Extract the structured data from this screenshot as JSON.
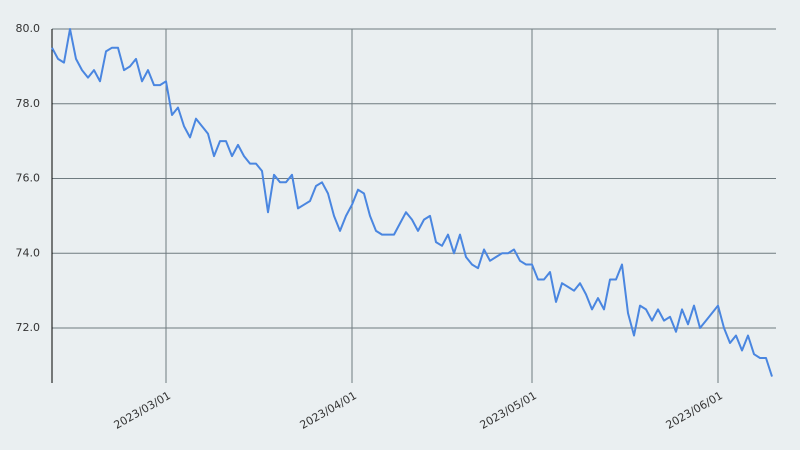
{
  "chart_data": {
    "type": "line",
    "x": [
      "2023-02-10",
      "2023-02-11",
      "2023-02-12",
      "2023-02-13",
      "2023-02-14",
      "2023-02-15",
      "2023-02-16",
      "2023-02-17",
      "2023-02-18",
      "2023-02-19",
      "2023-02-20",
      "2023-02-21",
      "2023-02-22",
      "2023-02-23",
      "2023-02-24",
      "2023-02-25",
      "2023-02-26",
      "2023-02-27",
      "2023-02-28",
      "2023-03-01",
      "2023-03-02",
      "2023-03-03",
      "2023-03-04",
      "2023-03-05",
      "2023-03-06",
      "2023-03-07",
      "2023-03-08",
      "2023-03-09",
      "2023-03-10",
      "2023-03-11",
      "2023-03-12",
      "2023-03-13",
      "2023-03-14",
      "2023-03-15",
      "2023-03-16",
      "2023-03-17",
      "2023-03-18",
      "2023-03-19",
      "2023-03-20",
      "2023-03-21",
      "2023-03-22",
      "2023-03-23",
      "2023-03-24",
      "2023-03-25",
      "2023-03-26",
      "2023-03-27",
      "2023-03-28",
      "2023-03-29",
      "2023-03-30",
      "2023-03-31",
      "2023-04-01",
      "2023-04-02",
      "2023-04-03",
      "2023-04-04",
      "2023-04-05",
      "2023-04-06",
      "2023-04-07",
      "2023-04-08",
      "2023-04-09",
      "2023-04-10",
      "2023-04-11",
      "2023-04-12",
      "2023-04-13",
      "2023-04-14",
      "2023-04-15",
      "2023-04-16",
      "2023-04-17",
      "2023-04-18",
      "2023-04-19",
      "2023-04-20",
      "2023-04-21",
      "2023-04-22",
      "2023-04-23",
      "2023-04-24",
      "2023-04-25",
      "2023-04-26",
      "2023-04-27",
      "2023-04-28",
      "2023-04-29",
      "2023-04-30",
      "2023-05-01",
      "2023-05-02",
      "2023-05-03",
      "2023-05-04",
      "2023-05-05",
      "2023-05-06",
      "2023-05-07",
      "2023-05-08",
      "2023-05-09",
      "2023-05-10",
      "2023-05-11",
      "2023-05-12",
      "2023-05-13",
      "2023-05-14",
      "2023-05-15",
      "2023-05-16",
      "2023-05-17",
      "2023-05-18",
      "2023-05-19",
      "2023-05-20",
      "2023-05-21",
      "2023-05-22",
      "2023-05-23",
      "2023-05-24",
      "2023-05-25",
      "2023-05-26",
      "2023-05-27",
      "2023-05-28",
      "2023-05-29",
      "2023-05-30",
      "2023-05-31",
      "2023-06-01",
      "2023-06-02",
      "2023-06-03",
      "2023-06-04",
      "2023-06-05",
      "2023-06-06",
      "2023-06-07",
      "2023-06-08",
      "2023-06-09",
      "2023-06-10"
    ],
    "values": [
      79.5,
      79.2,
      79.1,
      80.0,
      79.2,
      78.9,
      78.7,
      78.9,
      78.6,
      79.4,
      79.5,
      79.5,
      78.9,
      79.0,
      79.2,
      78.6,
      78.9,
      78.5,
      78.5,
      78.6,
      77.7,
      77.9,
      77.4,
      77.1,
      77.6,
      77.4,
      77.2,
      76.6,
      77.0,
      77.0,
      76.6,
      76.9,
      76.6,
      76.4,
      76.4,
      76.2,
      75.1,
      76.1,
      75.9,
      75.9,
      76.1,
      75.2,
      75.3,
      75.4,
      75.8,
      75.9,
      75.6,
      75.0,
      74.6,
      75.0,
      75.3,
      75.7,
      75.6,
      75.0,
      74.6,
      74.5,
      74.5,
      74.5,
      74.8,
      75.1,
      74.9,
      74.6,
      74.9,
      75.0,
      74.3,
      74.2,
      74.5,
      74.0,
      74.5,
      73.9,
      73.7,
      73.6,
      74.1,
      73.8,
      73.9,
      74.0,
      74.0,
      74.1,
      73.8,
      73.7,
      73.7,
      73.3,
      73.3,
      73.5,
      72.7,
      73.2,
      73.1,
      73.0,
      73.2,
      72.9,
      72.5,
      72.8,
      72.5,
      73.3,
      73.3,
      73.7,
      72.4,
      71.8,
      72.6,
      72.5,
      72.2,
      72.5,
      72.2,
      72.3,
      71.9,
      72.5,
      72.1,
      72.6,
      72.0,
      72.2,
      72.4,
      72.6,
      72.0,
      71.6,
      71.8,
      71.4,
      71.8,
      71.3,
      71.2,
      71.2,
      70.7
    ],
    "color": "#4a86e0",
    "xlim": [
      "2023-02-10",
      "2023-06-10"
    ],
    "xticks": [
      {
        "value": "2023-03-01",
        "label": "2023/03/01"
      },
      {
        "value": "2023-04-01",
        "label": "2023/04/01"
      },
      {
        "value": "2023-05-01",
        "label": "2023/05/01"
      },
      {
        "value": "2023-06-01",
        "label": "2023/06/01"
      }
    ],
    "ylim": [
      70.53,
      80.0
    ],
    "yticks": [
      {
        "value": 72,
        "label": "72.0"
      },
      {
        "value": 74,
        "label": "74.0"
      },
      {
        "value": 76,
        "label": "76.0"
      },
      {
        "value": 78,
        "label": "78.0"
      },
      {
        "value": 80,
        "label": "80.0"
      }
    ],
    "grid": true
  }
}
